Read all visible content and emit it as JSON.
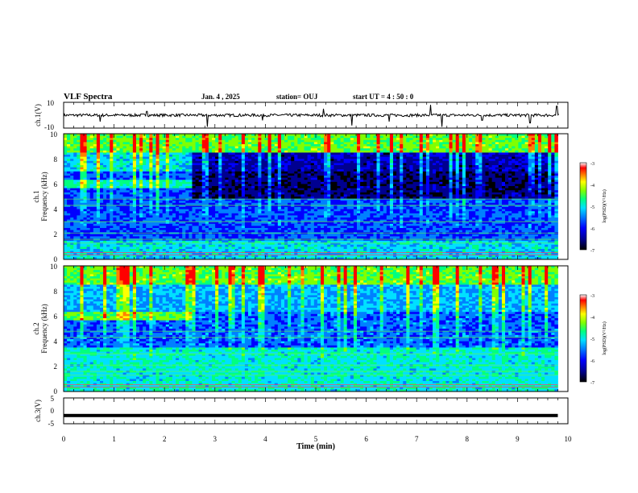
{
  "header": {
    "title": "VLF Spectra",
    "date": "Jan. 4 , 2025",
    "station": "station= OUJ",
    "start_ut": "start UT = 4 : 50 : 0"
  },
  "colors": {
    "background": "#ffffff",
    "axis": "#000000",
    "colormap": [
      "#000000",
      "#000090",
      "#0000ff",
      "#0080ff",
      "#00e0ff",
      "#00ff80",
      "#80ff00",
      "#ffff00",
      "#ff8000",
      "#ff0000",
      "#ffffff"
    ]
  },
  "chart_data": [
    {
      "type": "line",
      "panel": "ch1-waveform",
      "ylabel": "ch.1(V)",
      "ylim": [
        -10,
        10
      ],
      "y_ticks": [
        "10",
        "-10"
      ],
      "x_range": [
        0,
        10
      ],
      "trace_baseline": 0,
      "spikes": [
        {
          "t": 0.72,
          "v": -5
        },
        {
          "t": 1.65,
          "v": 3
        },
        {
          "t": 2.85,
          "v": -9
        },
        {
          "t": 3.95,
          "v": -4
        },
        {
          "t": 5.15,
          "v": 5
        },
        {
          "t": 5.72,
          "v": -8
        },
        {
          "t": 6.45,
          "v": -5
        },
        {
          "t": 7.28,
          "v": 8
        },
        {
          "t": 7.5,
          "v": -9
        },
        {
          "t": 8.3,
          "v": -4
        },
        {
          "t": 9.25,
          "v": -6
        },
        {
          "t": 9.78,
          "v": 7
        }
      ]
    },
    {
      "type": "heatmap",
      "panel": "ch1-spectrogram",
      "ylabel_line1": "ch.1",
      "ylabel_line2": "Frequency (kHz)",
      "ylim": [
        0,
        10
      ],
      "y_ticks": [
        "10",
        "8",
        "6",
        "4",
        "2",
        "0"
      ],
      "x_range": [
        0,
        9.8
      ],
      "colorbar": {
        "label": "log(PSD)(V²/Hz)",
        "range": [
          -7,
          -3
        ],
        "ticks": [
          "-3",
          "-4",
          "-5",
          "-6",
          "-7"
        ]
      }
    },
    {
      "type": "heatmap",
      "panel": "ch2-spectrogram",
      "ylabel_line1": "ch.2",
      "ylabel_line2": "Frequency (kHz)",
      "ylim": [
        0,
        10
      ],
      "y_ticks": [
        "10",
        "8",
        "6",
        "4",
        "2",
        "0"
      ],
      "x_range": [
        0,
        9.8
      ],
      "colorbar": {
        "label": "log(PSD)(V²/Hz)",
        "range": [
          -7,
          -3
        ],
        "ticks": [
          "-3",
          "-4",
          "-5",
          "-6",
          "-7"
        ]
      }
    },
    {
      "type": "line",
      "panel": "ch3-waveform",
      "ylabel": "ch.3(V)",
      "ylim": [
        -5,
        5
      ],
      "y_ticks": [
        "5",
        "0",
        "-5"
      ],
      "x_range": [
        0,
        9.8
      ],
      "trace_value": -1.8
    }
  ],
  "xaxis": {
    "label": "Time (min)",
    "xlim": [
      0,
      10
    ],
    "ticks": [
      "0",
      "1",
      "2",
      "3",
      "4",
      "5",
      "6",
      "7",
      "8",
      "9",
      "10"
    ]
  }
}
